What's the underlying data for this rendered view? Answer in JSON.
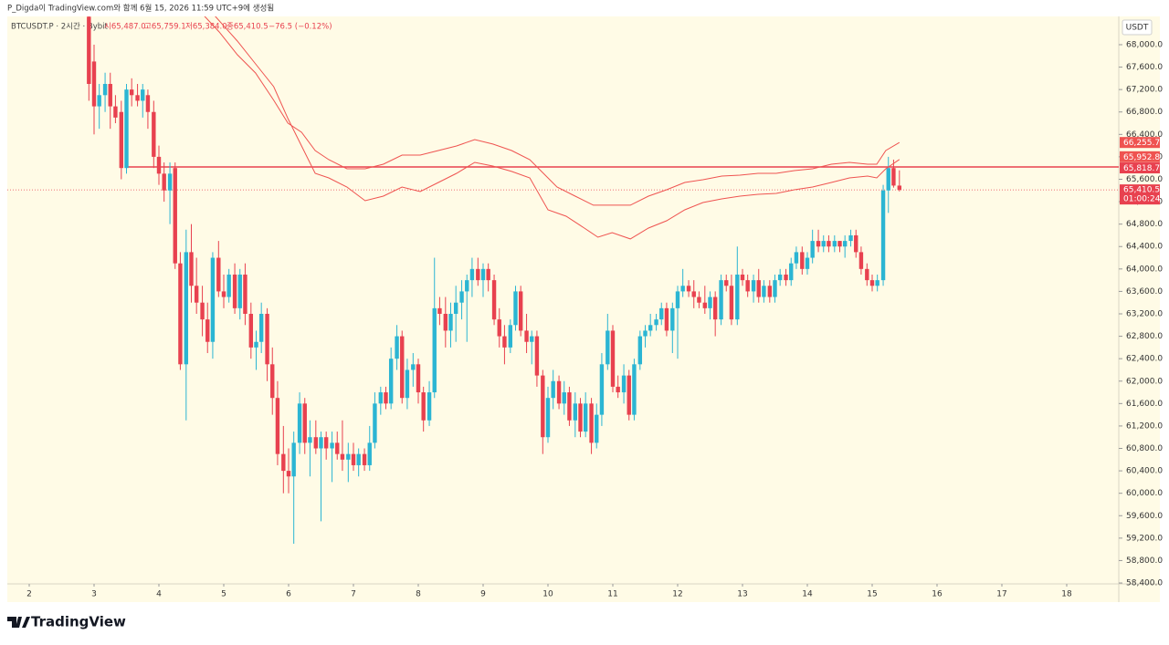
{
  "header": {
    "credit": "P_Digda이 TradingView.com와 함께 6월 15, 2026 11:59 UTC+9에 생성됨",
    "logo": "TradingView"
  },
  "chart_data": {
    "type": "candlestick",
    "legend": {
      "symbol": "BTCUSDT.P · 2시간 · Bybit",
      "open": "시65,487.0",
      "high": "고65,759.1",
      "low": "저65,384.0",
      "close": "종65,410.5",
      "change": "−76.5 (−0.12%)"
    },
    "currency": "USDT",
    "up_color": "#2bb5d3",
    "down_color": "#e8414f",
    "background": "#fffbe6",
    "envelope_color": "#ef5350",
    "hline_color": "#e8414f",
    "xlim": [
      1.662,
      18.803
    ],
    "xticks": [
      2,
      3,
      4,
      5,
      6,
      7,
      8,
      9,
      10,
      11,
      12,
      13,
      14,
      15,
      16,
      17,
      18
    ],
    "ylim": [
      58384,
      68504
    ],
    "yticks": [
      {
        "value": 58400,
        "label": "58,400.0"
      },
      {
        "value": 58800,
        "label": "58,800.0"
      },
      {
        "value": 59200,
        "label": "59,200.0"
      },
      {
        "value": 59600,
        "label": "59,600.0"
      },
      {
        "value": 60000,
        "label": "60,000.0"
      },
      {
        "value": 60400,
        "label": "60,400.0"
      },
      {
        "value": 60800,
        "label": "60,800.0"
      },
      {
        "value": 61200,
        "label": "61,200.0"
      },
      {
        "value": 61600,
        "label": "61,600.0"
      },
      {
        "value": 62000,
        "label": "62,000.0"
      },
      {
        "value": 62400,
        "label": "62,400.0"
      },
      {
        "value": 62800,
        "label": "62,800.0"
      },
      {
        "value": 63200,
        "label": "63,200.0"
      },
      {
        "value": 63600,
        "label": "63,600.0"
      },
      {
        "value": 64000,
        "label": "64,000.0"
      },
      {
        "value": 64400,
        "label": "64,400.0"
      },
      {
        "value": 64800,
        "label": "64,800.0"
      },
      {
        "value": 65200,
        "label": "65,200.0"
      },
      {
        "value": 65600,
        "label": "65,600.0"
      },
      {
        "value": 66000,
        "label": "66,000.0"
      },
      {
        "value": 66400,
        "label": "66,400.0"
      },
      {
        "value": 66800,
        "label": "66,800.0"
      },
      {
        "value": 67200,
        "label": "67,200.0"
      },
      {
        "value": 67600,
        "label": "67,600.0"
      },
      {
        "value": 68000,
        "label": "68,000.0"
      }
    ],
    "x": [
      2.92,
      3,
      3.08,
      3.17,
      3.25,
      3.33,
      3.42,
      3.5,
      3.58,
      3.67,
      3.75,
      3.83,
      3.92,
      4,
      4.08,
      4.17,
      4.25,
      4.33,
      4.42,
      4.5,
      4.58,
      4.67,
      4.75,
      4.83,
      4.92,
      5,
      5.08,
      5.17,
      5.25,
      5.33,
      5.42,
      5.5,
      5.58,
      5.67,
      5.75,
      5.83,
      5.92,
      6,
      6.08,
      6.17,
      6.25,
      6.33,
      6.42,
      6.5,
      6.58,
      6.67,
      6.75,
      6.83,
      6.92,
      7,
      7.08,
      7.17,
      7.25,
      7.33,
      7.42,
      7.5,
      7.58,
      7.67,
      7.75,
      7.83,
      7.92,
      8,
      8.08,
      8.17,
      8.25,
      8.33,
      8.42,
      8.5,
      8.58,
      8.67,
      8.75,
      8.83,
      8.92,
      9,
      9.08,
      9.17,
      9.25,
      9.33,
      9.42,
      9.5,
      9.58,
      9.67,
      9.75,
      9.83,
      9.92,
      10,
      10.08,
      10.17,
      10.25,
      10.33,
      10.42,
      10.5,
      10.58,
      10.67,
      10.75,
      10.83,
      10.92,
      11,
      11.08,
      11.17,
      11.25,
      11.33,
      11.42,
      11.5,
      11.58,
      11.67,
      11.75,
      11.83,
      11.92,
      12,
      12.08,
      12.17,
      12.25,
      12.33,
      12.42,
      12.5,
      12.58,
      12.67,
      12.75,
      12.83,
      12.92,
      13,
      13.08,
      13.17,
      13.25,
      13.33,
      13.42,
      13.5,
      13.58,
      13.67,
      13.75,
      13.83,
      13.92,
      14,
      14.08,
      14.17,
      14.25,
      14.33,
      14.42,
      14.5,
      14.58,
      14.67,
      14.75,
      14.83,
      14.92,
      15,
      15.08,
      15.17,
      15.25,
      15.33,
      15.42
    ],
    "ohlc": [
      [
        68500,
        68700,
        67000,
        67300
      ],
      [
        67700,
        68000,
        66400,
        66900
      ],
      [
        66900,
        67300,
        66500,
        67100
      ],
      [
        67100,
        67500,
        66800,
        67300
      ],
      [
        67300,
        67500,
        66500,
        66900
      ],
      [
        66900,
        67100,
        66600,
        66700
      ],
      [
        66800,
        67000,
        65600,
        65800
      ],
      [
        65800,
        67300,
        65700,
        67200
      ],
      [
        67200,
        67400,
        66900,
        67100
      ],
      [
        67100,
        67300,
        66900,
        67000
      ],
      [
        67000,
        67300,
        66700,
        67200
      ],
      [
        67100,
        67200,
        66500,
        66800
      ],
      [
        66800,
        67000,
        65800,
        66000
      ],
      [
        66000,
        66200,
        65500,
        65700
      ],
      [
        65700,
        65900,
        65200,
        65400
      ],
      [
        65400,
        65900,
        64800,
        65700
      ],
      [
        65800,
        65900,
        64000,
        64100
      ],
      [
        64100,
        64300,
        62200,
        62300
      ],
      [
        62300,
        64700,
        61300,
        64300
      ],
      [
        64300,
        64800,
        63400,
        63700
      ],
      [
        63700,
        64200,
        63200,
        63400
      ],
      [
        63400,
        63700,
        62800,
        63100
      ],
      [
        63100,
        63400,
        62500,
        62700
      ],
      [
        62700,
        64300,
        62400,
        64200
      ],
      [
        64200,
        64500,
        63500,
        63600
      ],
      [
        63600,
        63900,
        63300,
        63500
      ],
      [
        63500,
        64000,
        63400,
        63900
      ],
      [
        63900,
        64100,
        63200,
        63300
      ],
      [
        63300,
        64000,
        63100,
        63900
      ],
      [
        63900,
        64100,
        63000,
        63200
      ],
      [
        63200,
        63400,
        62400,
        62600
      ],
      [
        62600,
        62900,
        62200,
        62700
      ],
      [
        62700,
        63400,
        62500,
        63200
      ],
      [
        63200,
        63300,
        62000,
        62300
      ],
      [
        62300,
        62600,
        61400,
        61700
      ],
      [
        61700,
        62000,
        60500,
        60700
      ],
      [
        60700,
        61200,
        60000,
        60400
      ],
      [
        60400,
        60800,
        60000,
        60300
      ],
      [
        60300,
        61100,
        59100,
        60900
      ],
      [
        60900,
        61800,
        60700,
        61600
      ],
      [
        61600,
        61700,
        60700,
        60900
      ],
      [
        60900,
        61300,
        60300,
        61000
      ],
      [
        61000,
        61300,
        60700,
        60800
      ],
      [
        60800,
        61100,
        59500,
        61000
      ],
      [
        61000,
        61100,
        60600,
        60800
      ],
      [
        60800,
        61100,
        60200,
        60900
      ],
      [
        60900,
        61100,
        60600,
        60700
      ],
      [
        60700,
        61300,
        60400,
        60600
      ],
      [
        60600,
        60900,
        60200,
        60700
      ],
      [
        60700,
        60900,
        60400,
        60500
      ],
      [
        60500,
        60800,
        60300,
        60700
      ],
      [
        60700,
        60800,
        60400,
        60500
      ],
      [
        60500,
        61200,
        60400,
        60900
      ],
      [
        60900,
        61800,
        60800,
        61600
      ],
      [
        61600,
        61900,
        61400,
        61800
      ],
      [
        61800,
        61900,
        61500,
        61600
      ],
      [
        61600,
        62600,
        61500,
        62400
      ],
      [
        62400,
        63000,
        62200,
        62800
      ],
      [
        62800,
        62900,
        61600,
        61700
      ],
      [
        61700,
        62400,
        61500,
        62200
      ],
      [
        62200,
        62500,
        61900,
        62300
      ],
      [
        62300,
        62400,
        61600,
        61800
      ],
      [
        61800,
        61900,
        61100,
        61300
      ],
      [
        61300,
        62000,
        61200,
        61800
      ],
      [
        61800,
        64200,
        61700,
        63300
      ],
      [
        63300,
        63500,
        63000,
        63200
      ],
      [
        63200,
        63500,
        62600,
        62900
      ],
      [
        62900,
        63400,
        62600,
        63200
      ],
      [
        63200,
        63700,
        62700,
        63400
      ],
      [
        63400,
        63800,
        63100,
        63600
      ],
      [
        63600,
        63900,
        62700,
        63800
      ],
      [
        63800,
        64200,
        63500,
        64000
      ],
      [
        64000,
        64200,
        63700,
        63800
      ],
      [
        63800,
        64100,
        63500,
        64000
      ],
      [
        64000,
        64100,
        63600,
        63800
      ],
      [
        63800,
        63900,
        63000,
        63100
      ],
      [
        63100,
        63300,
        62600,
        62800
      ],
      [
        62800,
        63000,
        62300,
        62600
      ],
      [
        62600,
        63100,
        62500,
        63000
      ],
      [
        63000,
        63700,
        62900,
        63600
      ],
      [
        63600,
        63700,
        62800,
        62900
      ],
      [
        62900,
        63200,
        62500,
        62700
      ],
      [
        62700,
        62900,
        62300,
        62800
      ],
      [
        62800,
        62900,
        61900,
        62100
      ],
      [
        62100,
        62200,
        60700,
        61000
      ],
      [
        61000,
        61900,
        60900,
        61700
      ],
      [
        61700,
        62200,
        61500,
        62000
      ],
      [
        62000,
        62100,
        61500,
        61600
      ],
      [
        61600,
        62000,
        61400,
        61800
      ],
      [
        61800,
        61900,
        61200,
        61300
      ],
      [
        61300,
        61800,
        61000,
        61600
      ],
      [
        61600,
        61700,
        61000,
        61100
      ],
      [
        61100,
        61800,
        61000,
        61600
      ],
      [
        61600,
        61700,
        60700,
        60900
      ],
      [
        60900,
        61600,
        60800,
        61400
      ],
      [
        61400,
        62500,
        61200,
        62300
      ],
      [
        62300,
        63200,
        62200,
        62900
      ],
      [
        62900,
        63000,
        61800,
        61900
      ],
      [
        61900,
        62100,
        61700,
        61800
      ],
      [
        61800,
        62300,
        61600,
        62100
      ],
      [
        62100,
        62200,
        61300,
        61400
      ],
      [
        61400,
        62400,
        61300,
        62300
      ],
      [
        62300,
        62900,
        62200,
        62800
      ],
      [
        62800,
        63000,
        62600,
        62900
      ],
      [
        62900,
        63200,
        62800,
        63000
      ],
      [
        63000,
        63200,
        62900,
        63100
      ],
      [
        63100,
        63400,
        63000,
        63300
      ],
      [
        63300,
        63400,
        62800,
        62900
      ],
      [
        62900,
        63400,
        62500,
        63300
      ],
      [
        63300,
        63700,
        62400,
        63600
      ],
      [
        63600,
        64000,
        63500,
        63700
      ],
      [
        63700,
        63800,
        63500,
        63600
      ],
      [
        63600,
        63800,
        63300,
        63500
      ],
      [
        63500,
        63600,
        63300,
        63400
      ],
      [
        63400,
        63700,
        63200,
        63300
      ],
      [
        63300,
        63600,
        63100,
        63500
      ],
      [
        63500,
        63600,
        62800,
        63100
      ],
      [
        63100,
        63900,
        63000,
        63800
      ],
      [
        63800,
        63900,
        63600,
        63700
      ],
      [
        63700,
        63900,
        63000,
        63100
      ],
      [
        63100,
        64400,
        63000,
        63900
      ],
      [
        63900,
        64000,
        63700,
        63800
      ],
      [
        63800,
        63900,
        63500,
        63600
      ],
      [
        63600,
        63900,
        63400,
        63800
      ],
      [
        63800,
        64000,
        63400,
        63500
      ],
      [
        63500,
        63800,
        63400,
        63700
      ],
      [
        63700,
        63800,
        63400,
        63500
      ],
      [
        63500,
        63900,
        63400,
        63800
      ],
      [
        63800,
        64000,
        63700,
        63900
      ],
      [
        63900,
        64000,
        63700,
        63800
      ],
      [
        63800,
        64200,
        63700,
        64100
      ],
      [
        64100,
        64400,
        64000,
        64300
      ],
      [
        64300,
        64400,
        63900,
        64000
      ],
      [
        64000,
        64300,
        63900,
        64200
      ],
      [
        64200,
        64700,
        64100,
        64500
      ],
      [
        64500,
        64700,
        64300,
        64400
      ],
      [
        64400,
        64600,
        64300,
        64500
      ],
      [
        64500,
        64600,
        64300,
        64400
      ],
      [
        64400,
        64600,
        64300,
        64500
      ],
      [
        64500,
        64500,
        64300,
        64400
      ],
      [
        64400,
        64600,
        64200,
        64500
      ],
      [
        64500,
        64700,
        64400,
        64600
      ],
      [
        64600,
        64700,
        64200,
        64300
      ],
      [
        64300,
        64400,
        63900,
        64000
      ],
      [
        64000,
        64100,
        63700,
        63800
      ],
      [
        63800,
        63900,
        63600,
        63700
      ],
      [
        63700,
        63900,
        63600,
        63800
      ],
      [
        63800,
        65500,
        63700,
        65400
      ],
      [
        65400,
        66000,
        65000,
        65800
      ],
      [
        65800,
        65950,
        65450,
        65487
      ],
      [
        65487,
        65759.1,
        65384,
        65410.5
      ]
    ],
    "envelopes": [
      {
        "x": [
          4.55,
          4.93,
          5.21,
          5.49,
          5.77,
          5.99,
          6.2,
          6.41,
          6.62,
          6.9,
          7.18,
          7.46,
          7.75,
          8.03,
          8.31,
          8.59,
          8.87,
          9.15,
          9.44,
          9.72,
          9.93,
          10.14,
          10.42,
          10.7,
          10.99,
          11.27,
          11.55,
          11.83,
          12.11,
          12.39,
          12.68,
          12.96,
          13.24,
          13.52,
          13.8,
          14.08,
          14.37,
          14.65,
          14.93,
          15.07,
          15.21,
          15.42
        ],
        "values": [
          68700,
          68228,
          67821,
          67496,
          67008,
          66601,
          66438,
          66113,
          65950,
          65787,
          65787,
          65869,
          66031,
          66031,
          66113,
          66194,
          66308,
          66227,
          66113,
          65950,
          65706,
          65462,
          65299,
          65137,
          65137,
          65137,
          65299,
          65413,
          65543,
          65592,
          65657,
          65673,
          65706,
          65706,
          65755,
          65787,
          65869,
          65901,
          65869,
          65869,
          66113,
          66255.7
        ],
        "label": "66,255.7"
      },
      {
        "x": [
          4.72,
          5.21,
          5.49,
          5.77,
          5.99,
          6.2,
          6.41,
          6.62,
          6.9,
          7.18,
          7.46,
          7.75,
          8.03,
          8.31,
          8.59,
          8.87,
          9.15,
          9.44,
          9.72,
          10,
          10.28,
          10.56,
          10.77,
          10.99,
          11.27,
          11.55,
          11.83,
          12.11,
          12.39,
          12.68,
          12.96,
          13.24,
          13.52,
          13.8,
          14.08,
          14.37,
          14.65,
          14.93,
          15.07,
          15.21,
          15.42
        ],
        "values": [
          68700,
          68065,
          67658,
          67252,
          66682,
          66194,
          65706,
          65625,
          65462,
          65218,
          65299,
          65462,
          65380,
          65543,
          65706,
          65901,
          65836,
          65739,
          65625,
          65055,
          64941,
          64730,
          64567,
          64648,
          64535,
          64730,
          64860,
          65055,
          65185,
          65250,
          65299,
          65332,
          65348,
          65413,
          65462,
          65543,
          65625,
          65657,
          65625,
          65787,
          65952.8
        ],
        "label": "65,952.8"
      }
    ],
    "hline": {
      "x": 3.48,
      "value": 65818.7,
      "label": "65,818.7"
    },
    "last_price": {
      "value": 65410.5,
      "label": "65,410.5",
      "countdown": "01:00:24"
    }
  }
}
